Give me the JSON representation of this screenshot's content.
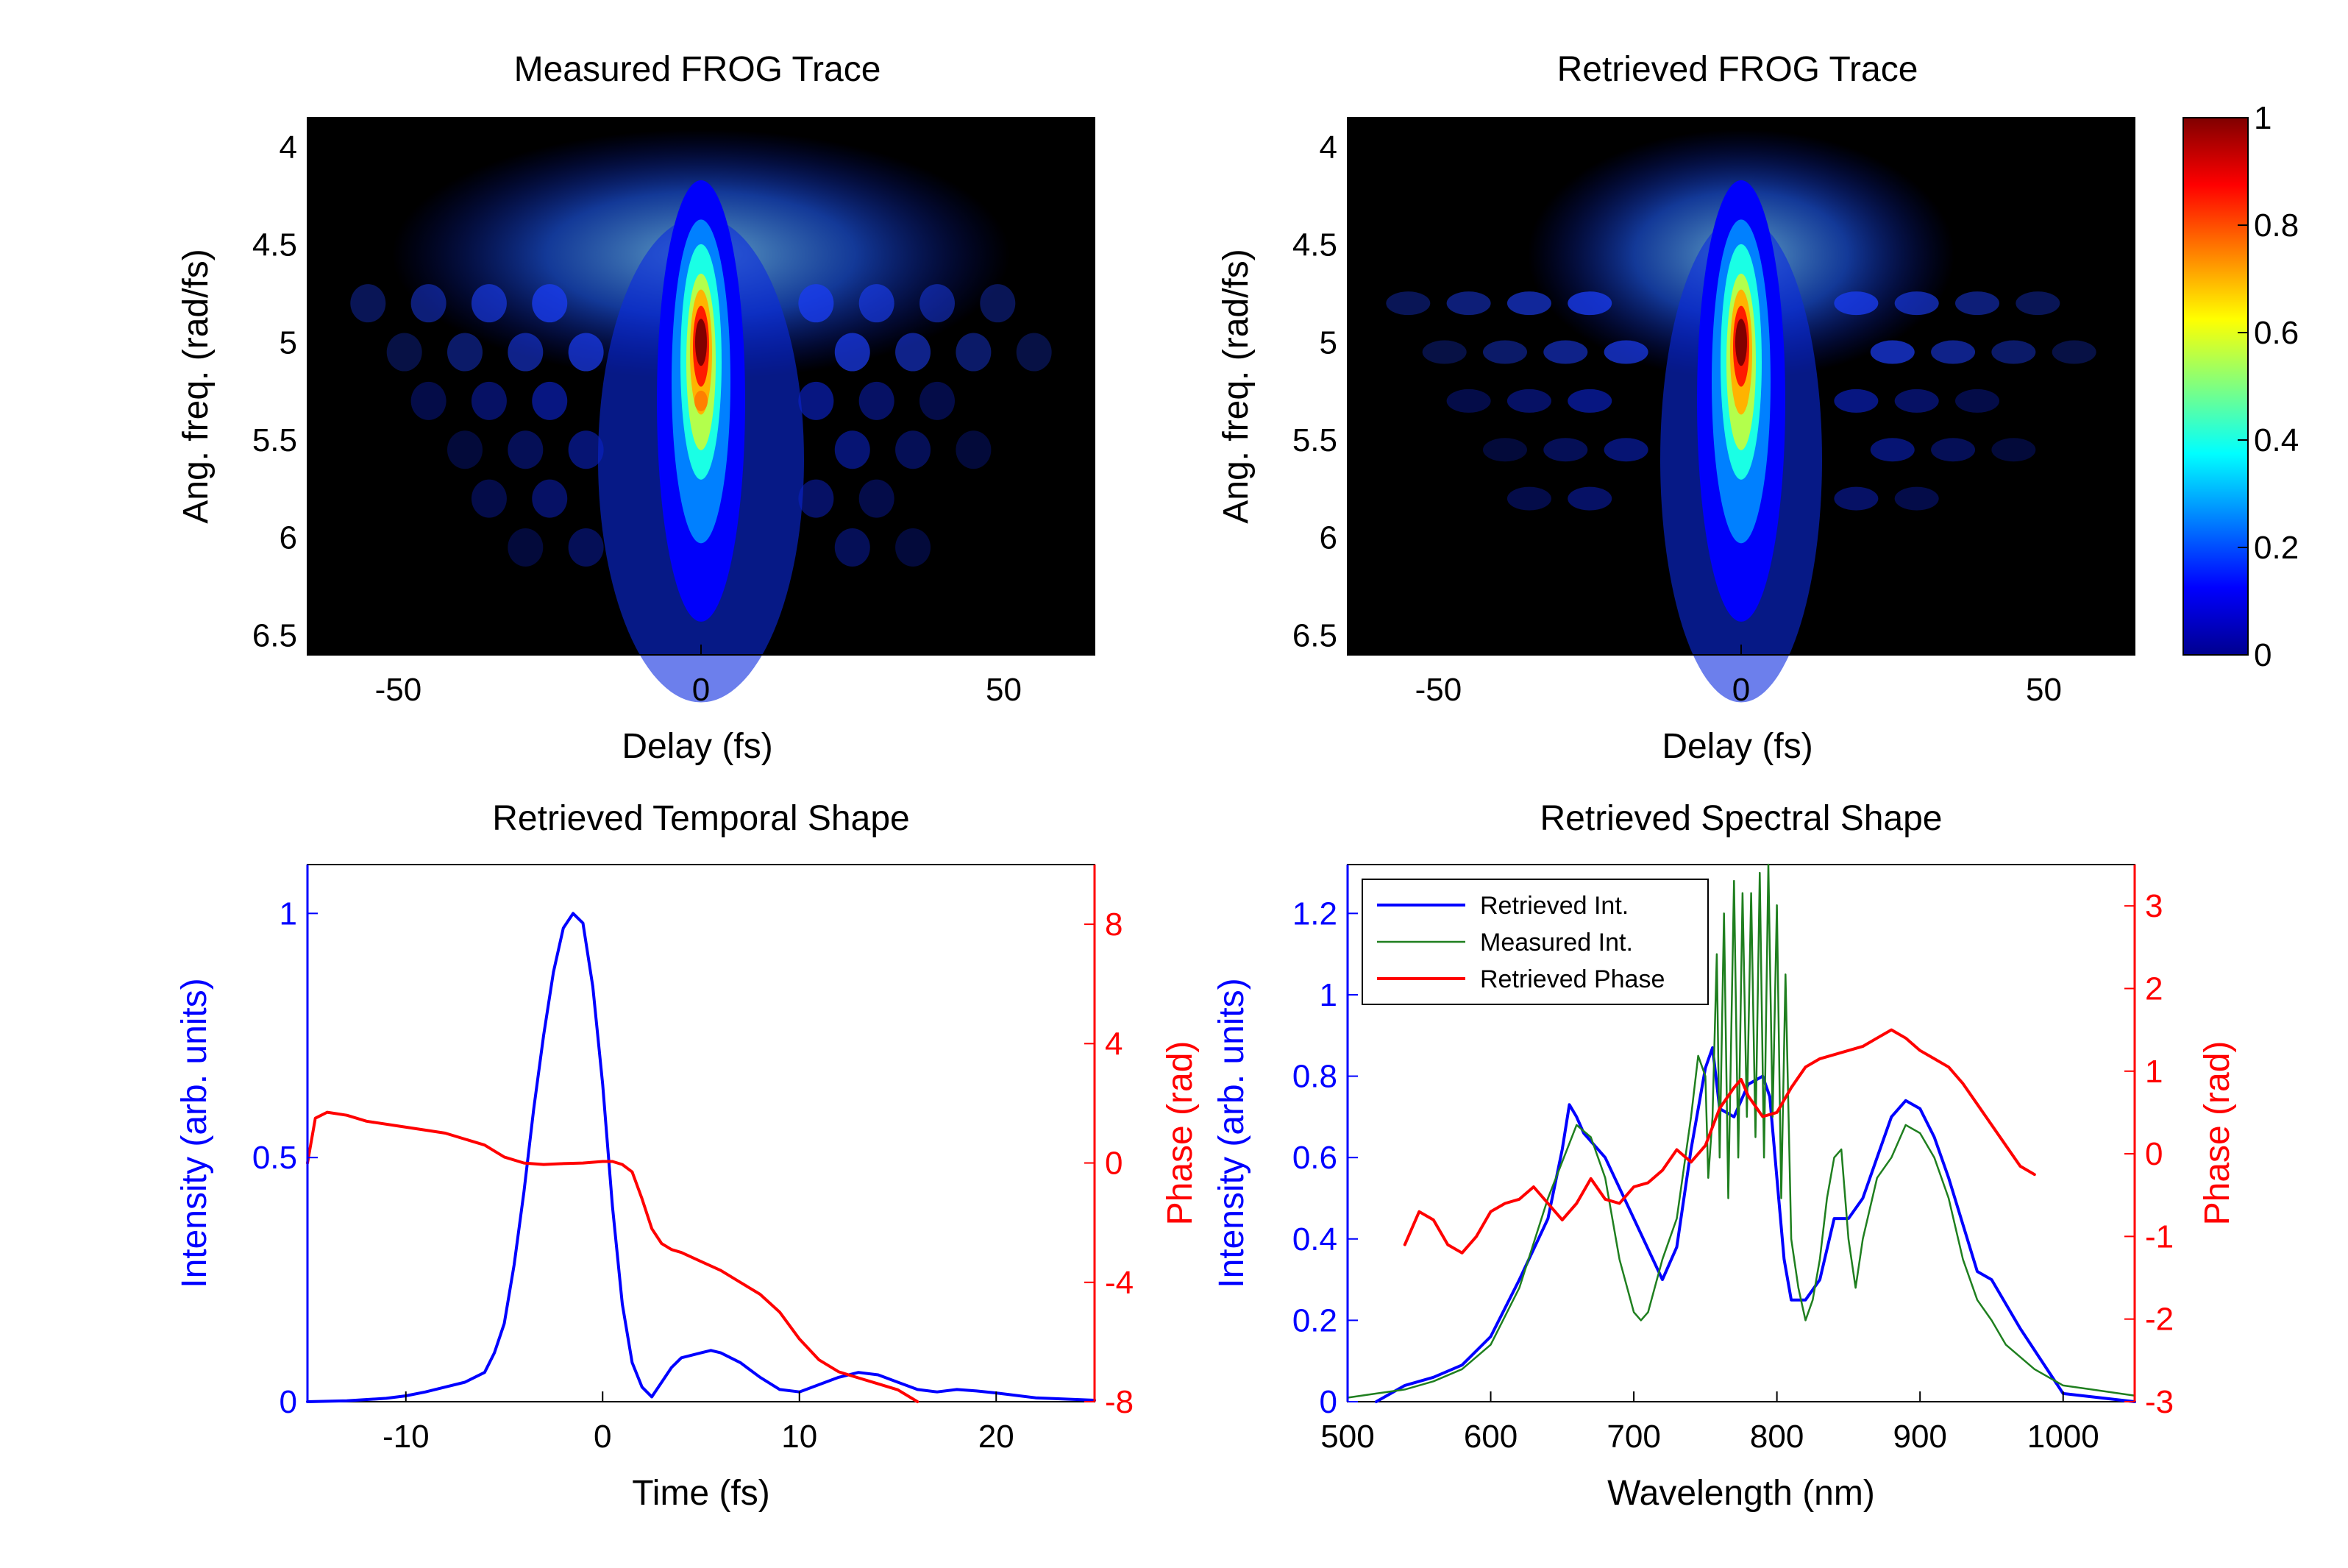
{
  "colors": {
    "retrieved_intensity": "#0000ff",
    "measured_intensity": "#1f7f1f",
    "retrieved_phase": "#ff0000",
    "frog_background": "#000000",
    "colormap": "jet"
  },
  "chart_data": [
    {
      "type": "heatmap",
      "title": "Measured FROG Trace",
      "xlabel": "Delay (fs)",
      "ylabel": "Ang. freq. (rad/fs)",
      "xlim": [
        -65,
        65
      ],
      "ylim": [
        3.85,
        6.6
      ],
      "y_reversed": true,
      "xticks": [
        "-50",
        "0",
        "50"
      ],
      "yticks": [
        "4",
        "4.5",
        "5",
        "5.5",
        "6",
        "6.5"
      ],
      "peak": {
        "delay": 0,
        "freq": 5.0,
        "value": 1.0
      },
      "secondary_peak": {
        "delay": 0,
        "freq": 5.3,
        "value": 0.75
      },
      "color_range": [
        0,
        1
      ],
      "grid": false
    },
    {
      "type": "heatmap",
      "title": "Retrieved FROG Trace",
      "xlabel": "Delay (fs)",
      "ylabel": "Ang. freq. (rad/fs)",
      "xlim": [
        -65,
        65
      ],
      "ylim": [
        3.85,
        6.6
      ],
      "y_reversed": true,
      "xticks": [
        "-50",
        "0",
        "50"
      ],
      "yticks": [
        "4",
        "4.5",
        "5",
        "5.5",
        "6",
        "6.5"
      ],
      "peak": {
        "delay": 0,
        "freq": 5.0,
        "value": 1.0
      },
      "secondary_peak": {
        "delay": 0,
        "freq": 5.3,
        "value": 0.7
      },
      "color_range": [
        0,
        1
      ],
      "colorbar_ticks": [
        "0",
        "0.2",
        "0.4",
        "0.6",
        "0.8",
        "1"
      ],
      "grid": false
    },
    {
      "type": "line",
      "title": "Retrieved Temporal Shape",
      "xlabel": "Time (fs)",
      "ylabel": "Intensity (arb. units)",
      "ylabel_right": "Phase (rad)",
      "xlim": [
        -15,
        25
      ],
      "ylim": [
        0,
        1.1
      ],
      "ylim_right": [
        -8,
        10
      ],
      "xticks": [
        "-10",
        "0",
        "10",
        "20"
      ],
      "yticks": [
        "0",
        "0.5",
        "1"
      ],
      "yticks_right": [
        "-8",
        "-4",
        "0",
        "4",
        "8"
      ],
      "series": [
        {
          "axis": "left",
          "color": "#0000ff",
          "x": [
            -15,
            -13,
            -11,
            -10,
            -9,
            -8,
            -7,
            -6,
            -5.5,
            -5,
            -4.5,
            -4,
            -3.5,
            -3,
            -2.5,
            -2,
            -1.5,
            -1,
            -0.5,
            0,
            0.5,
            1,
            1.5,
            2,
            2.5,
            3,
            3.5,
            4,
            5,
            5.5,
            6,
            7,
            8,
            9,
            10,
            11,
            12,
            13,
            14,
            15,
            16,
            17,
            18,
            19,
            20,
            22,
            25
          ],
          "y": [
            0,
            0.002,
            0.007,
            0.012,
            0.02,
            0.03,
            0.04,
            0.06,
            0.1,
            0.16,
            0.28,
            0.43,
            0.6,
            0.75,
            0.88,
            0.97,
            1.0,
            0.98,
            0.85,
            0.65,
            0.4,
            0.2,
            0.08,
            0.03,
            0.01,
            0.04,
            0.07,
            0.09,
            0.1,
            0.105,
            0.1,
            0.08,
            0.05,
            0.025,
            0.02,
            0.035,
            0.05,
            0.06,
            0.055,
            0.04,
            0.025,
            0.02,
            0.025,
            0.022,
            0.018,
            0.008,
            0.003
          ]
        },
        {
          "axis": "right",
          "color": "#ff0000",
          "x": [
            -15,
            -14.6,
            -14,
            -13,
            -12,
            -10,
            -8,
            -6,
            -5,
            -4,
            -3,
            -2,
            -1,
            0,
            0.5,
            1,
            1.5,
            2,
            2.5,
            3,
            3.5,
            4,
            5,
            6,
            7,
            8,
            9,
            10,
            11,
            12,
            13,
            14,
            15,
            16
          ],
          "y": [
            0,
            1.5,
            1.7,
            1.6,
            1.4,
            1.2,
            1.0,
            0.6,
            0.2,
            0,
            -0.05,
            -0.02,
            0,
            0.05,
            0.05,
            -0.05,
            -0.3,
            -1.2,
            -2.2,
            -2.7,
            -2.9,
            -3.0,
            -3.3,
            -3.6,
            -4.0,
            -4.4,
            -5.0,
            -5.9,
            -6.6,
            -7.0,
            -7.2,
            -7.4,
            -7.6,
            -8.0
          ]
        }
      ],
      "grid": false
    },
    {
      "type": "line",
      "title": "Retrieved Spectral Shape",
      "xlabel": "Wavelength (nm)",
      "ylabel": "Intensity (arb. units)",
      "ylabel_right": "Phase (rad)",
      "xlim": [
        500,
        1050
      ],
      "ylim": [
        0,
        1.32
      ],
      "ylim_right": [
        -3,
        3.5
      ],
      "xticks": [
        "500",
        "600",
        "700",
        "800",
        "900",
        "1000"
      ],
      "yticks": [
        "0",
        "0.2",
        "0.4",
        "0.6",
        "0.8",
        "1",
        "1.2"
      ],
      "yticks_right": [
        "-3",
        "-2",
        "-1",
        "0",
        "1",
        "2",
        "3"
      ],
      "legend_position": "top-left",
      "series": [
        {
          "name": "Retrieved Int.",
          "axis": "left",
          "color": "#0000ff",
          "width": 4,
          "x": [
            520,
            540,
            560,
            580,
            600,
            620,
            640,
            650,
            655,
            660,
            665,
            680,
            700,
            720,
            730,
            740,
            750,
            755,
            760,
            770,
            780,
            790,
            795,
            800,
            805,
            810,
            820,
            830,
            840,
            850,
            860,
            870,
            880,
            890,
            900,
            910,
            920,
            940,
            950,
            970,
            1000,
            1050
          ],
          "y": [
            0,
            0.04,
            0.06,
            0.09,
            0.16,
            0.3,
            0.45,
            0.62,
            0.73,
            0.7,
            0.66,
            0.6,
            0.45,
            0.3,
            0.38,
            0.62,
            0.82,
            0.87,
            0.72,
            0.7,
            0.78,
            0.8,
            0.75,
            0.55,
            0.35,
            0.25,
            0.25,
            0.3,
            0.45,
            0.45,
            0.5,
            0.6,
            0.7,
            0.74,
            0.72,
            0.65,
            0.55,
            0.32,
            0.3,
            0.18,
            0.02,
            0
          ]
        },
        {
          "name": "Measured Int.",
          "axis": "left",
          "color": "#1f7f1f",
          "width": 2.5,
          "x": [
            500,
            520,
            540,
            560,
            580,
            600,
            620,
            640,
            660,
            670,
            680,
            690,
            700,
            705,
            710,
            720,
            730,
            740,
            745,
            750,
            752,
            755,
            758,
            760,
            763,
            766,
            770,
            773,
            776,
            779,
            782,
            785,
            788,
            791,
            794,
            797,
            800,
            803,
            806,
            810,
            815,
            820,
            825,
            830,
            835,
            840,
            845,
            850,
            855,
            860,
            870,
            880,
            890,
            900,
            910,
            920,
            930,
            940,
            950,
            960,
            980,
            1000,
            1020,
            1050
          ],
          "y": [
            0.01,
            0.02,
            0.03,
            0.05,
            0.08,
            0.14,
            0.28,
            0.5,
            0.68,
            0.65,
            0.55,
            0.35,
            0.22,
            0.2,
            0.22,
            0.35,
            0.45,
            0.7,
            0.85,
            0.8,
            0.55,
            0.7,
            1.1,
            0.6,
            1.2,
            0.5,
            1.28,
            0.6,
            1.25,
            0.7,
            1.25,
            0.65,
            1.3,
            0.6,
            1.32,
            0.7,
            1.22,
            0.5,
            1.05,
            0.4,
            0.28,
            0.2,
            0.25,
            0.35,
            0.5,
            0.6,
            0.62,
            0.4,
            0.28,
            0.4,
            0.55,
            0.6,
            0.68,
            0.66,
            0.6,
            0.5,
            0.35,
            0.25,
            0.2,
            0.14,
            0.08,
            0.04,
            0.03,
            0.015
          ]
        },
        {
          "name": "Retrieved Phase",
          "axis": "right",
          "color": "#ff0000",
          "width": 4,
          "x": [
            540,
            550,
            560,
            570,
            580,
            590,
            600,
            610,
            620,
            630,
            640,
            650,
            660,
            670,
            680,
            690,
            700,
            710,
            720,
            730,
            740,
            750,
            760,
            770,
            775,
            780,
            790,
            800,
            810,
            820,
            830,
            840,
            850,
            860,
            870,
            880,
            890,
            900,
            910,
            920,
            930,
            940,
            950,
            960,
            970,
            980
          ],
          "y": [
            -1.1,
            -0.7,
            -0.8,
            -1.1,
            -1.2,
            -1.0,
            -0.7,
            -0.6,
            -0.55,
            -0.4,
            -0.6,
            -0.8,
            -0.6,
            -0.3,
            -0.55,
            -0.6,
            -0.4,
            -0.35,
            -0.2,
            0.05,
            -0.1,
            0.1,
            0.55,
            0.8,
            0.9,
            0.7,
            0.45,
            0.5,
            0.8,
            1.05,
            1.15,
            1.2,
            1.25,
            1.3,
            1.4,
            1.5,
            1.4,
            1.25,
            1.15,
            1.05,
            0.85,
            0.6,
            0.35,
            0.1,
            -0.15,
            -0.25
          ]
        }
      ],
      "grid": false
    }
  ]
}
